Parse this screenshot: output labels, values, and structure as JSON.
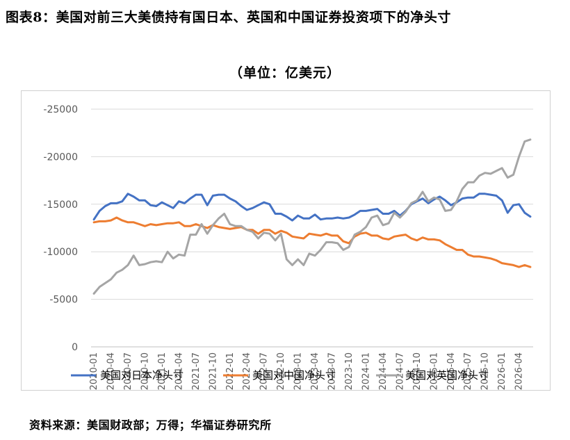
{
  "figure_title": "图表8：美国对前三大美债持有国日本、英国和中国证券投资项下的净头寸",
  "unit_label": "（单位：亿美元）",
  "source_note": "资料来源：美国财政部；万得；华福证券研究所",
  "chart_data": {
    "type": "line",
    "title": "",
    "xlabel": "",
    "ylabel": "",
    "y_axis_reversed": true,
    "ylim": [
      0,
      -25000
    ],
    "yticks": [
      0,
      -5000,
      -10000,
      -15000,
      -20000,
      -25000
    ],
    "grid": true,
    "legend_position": "bottom",
    "x": [
      "2020-01",
      "2020-02",
      "2020-03",
      "2020-04",
      "2020-05",
      "2020-06",
      "2020-07",
      "2020-08",
      "2020-09",
      "2020-10",
      "2020-11",
      "2020-12",
      "2021-01",
      "2021-02",
      "2021-03",
      "2021-04",
      "2021-05",
      "2021-06",
      "2021-07",
      "2021-08",
      "2021-09",
      "2021-10",
      "2021-11",
      "2021-12",
      "2022-01",
      "2022-02",
      "2022-03",
      "2022-04",
      "2022-05",
      "2022-06",
      "2022-07",
      "2022-08",
      "2022-09",
      "2022-10",
      "2022-11",
      "2022-12",
      "2023-01",
      "2023-02",
      "2023-03",
      "2023-04",
      "2023-05",
      "2023-06",
      "2023-07",
      "2023-08",
      "2023-09",
      "2023-10",
      "2023-11",
      "2023-12",
      "2024-01",
      "2024-02",
      "2024-03",
      "2024-04",
      "2024-05",
      "2024-06",
      "2024-07",
      "2024-08",
      "2024-09",
      "2024-10",
      "2024-11",
      "2024-12",
      "2025-01",
      "2025-02",
      "2025-03",
      "2025-04",
      "2025-05",
      "2025-06",
      "2025-07",
      "2025-08",
      "2025-09",
      "2025-10",
      "2025-11",
      "2025-12",
      "2026-01",
      "2026-02",
      "2026-03",
      "2026-04",
      "2026-05",
      "2026-06"
    ],
    "xtick_labels": [
      "2020-01",
      "2020-04",
      "2020-07",
      "2020-10",
      "2021-01",
      "2021-04",
      "2021-07",
      "2021-10",
      "2022-01",
      "2022-04",
      "2022-07",
      "2022-10",
      "2023-01",
      "2023-04",
      "2023-07",
      "2023-10",
      "2024-01",
      "2024-04",
      "2024-07",
      "2024-10",
      "2025-01",
      "2025-04",
      "2025-07",
      "2025-10",
      "2026-01",
      "2026-04"
    ],
    "series": [
      {
        "name": "美国对日本净头寸",
        "color": "#4472C4",
        "values": [
          -13400,
          -14300,
          -14800,
          -15100,
          -15100,
          -15300,
          -16100,
          -15800,
          -15400,
          -15400,
          -14900,
          -14800,
          -15200,
          -14900,
          -14600,
          -15300,
          -15100,
          -15600,
          -16000,
          -16000,
          -14900,
          -15900,
          -16000,
          -16000,
          -15600,
          -15300,
          -14800,
          -14400,
          -14600,
          -14900,
          -15200,
          -15000,
          -14000,
          -14000,
          -13700,
          -13300,
          -13800,
          -13500,
          -13500,
          -13900,
          -13400,
          -13500,
          -13500,
          -13600,
          -13500,
          -13600,
          -13900,
          -14300,
          -14300,
          -14400,
          -14500,
          -14000,
          -14000,
          -14300,
          -13800,
          -14300,
          -15000,
          -15300,
          -15600,
          -15100,
          -15500,
          -15800,
          -15400,
          -14900,
          -15200,
          -15600,
          -15700,
          -15700,
          -16100,
          -16100,
          -16000,
          -15900,
          -15400,
          -14100,
          -14900,
          -15000,
          -14100,
          -13700
        ]
      },
      {
        "name": "美国对中国净头寸",
        "color": "#ED7D31",
        "values": [
          -13100,
          -13200,
          -13200,
          -13300,
          -13600,
          -13300,
          -13100,
          -13100,
          -12900,
          -12700,
          -12900,
          -12800,
          -12900,
          -13000,
          -13000,
          -13100,
          -12700,
          -12700,
          -12900,
          -12700,
          -12500,
          -12800,
          -12600,
          -12500,
          -12400,
          -12500,
          -12600,
          -12300,
          -12300,
          -11900,
          -12300,
          -12300,
          -11900,
          -12200,
          -12000,
          -11600,
          -11500,
          -11400,
          -11900,
          -11800,
          -11700,
          -11900,
          -11700,
          -11700,
          -11100,
          -10900,
          -11600,
          -11900,
          -12000,
          -11700,
          -11700,
          -11400,
          -11300,
          -11600,
          -11700,
          -11800,
          -11400,
          -11200,
          -11500,
          -11300,
          -11300,
          -11200,
          -10800,
          -10500,
          -10200,
          -10200,
          -9700,
          -9500,
          -9500,
          -9400,
          -9300,
          -9100,
          -8800,
          -8700,
          -8600,
          -8400,
          -8600,
          -8400
        ]
      },
      {
        "name": "美国对英国净头寸",
        "color": "#A5A5A5",
        "values": [
          -5600,
          -6300,
          -6700,
          -7100,
          -7800,
          -8100,
          -8600,
          -9600,
          -8600,
          -8700,
          -8900,
          -9000,
          -8900,
          -10000,
          -9300,
          -9700,
          -9600,
          -11800,
          -11800,
          -12900,
          -11900,
          -12800,
          -13500,
          -14000,
          -12900,
          -12700,
          -12700,
          -12300,
          -12100,
          -11400,
          -12000,
          -11900,
          -11200,
          -11900,
          -9200,
          -8600,
          -9200,
          -8600,
          -9800,
          -9600,
          -10200,
          -11000,
          -11000,
          -10900,
          -10200,
          -10500,
          -11800,
          -12100,
          -12600,
          -13600,
          -13800,
          -12800,
          -13000,
          -14100,
          -13600,
          -14200,
          -15100,
          -15400,
          -16300,
          -15300,
          -15700,
          -15500,
          -14300,
          -14400,
          -15300,
          -16600,
          -17300,
          -17300,
          -18000,
          -18300,
          -18200,
          -18500,
          -18800,
          -17800,
          -18100,
          -20000,
          -21600,
          -21800
        ]
      }
    ]
  }
}
